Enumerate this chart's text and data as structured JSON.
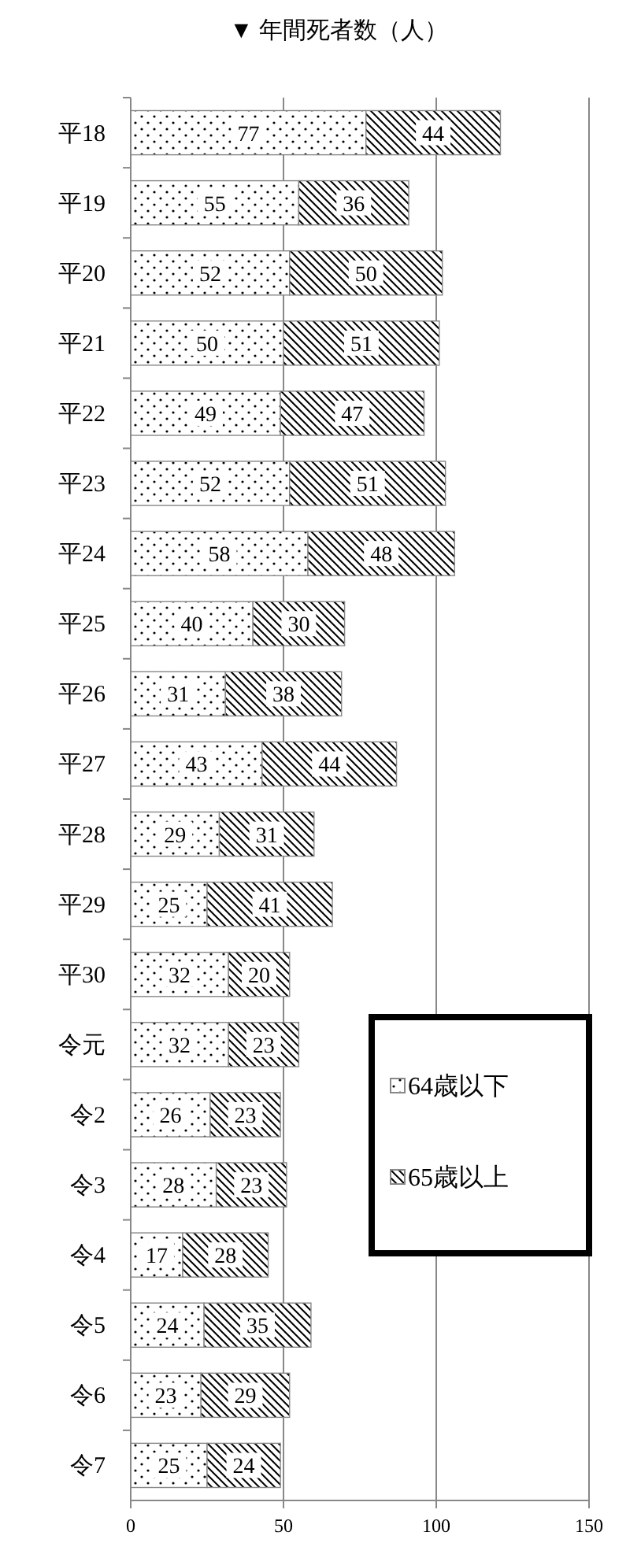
{
  "chart_data": {
    "type": "bar",
    "orientation": "horizontal",
    "stacked": true,
    "title": "▼ 年間死者数（人）",
    "categories": [
      "平18",
      "平19",
      "平20",
      "平21",
      "平22",
      "平23",
      "平24",
      "平25",
      "平26",
      "平27",
      "平28",
      "平29",
      "平30",
      "令元",
      "令2",
      "令3",
      "令4",
      "令5",
      "令6",
      "令7"
    ],
    "series": [
      {
        "name": "64歳以下",
        "color": "#888888",
        "values": [
          77,
          55,
          52,
          50,
          49,
          52,
          58,
          40,
          31,
          43,
          29,
          25,
          32,
          32,
          26,
          28,
          17,
          24,
          23,
          25
        ]
      },
      {
        "name": "65歳以上",
        "color": "#888888",
        "values": [
          44,
          36,
          50,
          51,
          47,
          51,
          48,
          30,
          38,
          44,
          31,
          41,
          20,
          23,
          23,
          23,
          28,
          35,
          29,
          24
        ]
      }
    ],
    "xlim": [
      0,
      150
    ],
    "xticks": [
      0,
      50,
      100,
      150
    ],
    "grid": "x",
    "legend": "right",
    "data_labels": true
  }
}
